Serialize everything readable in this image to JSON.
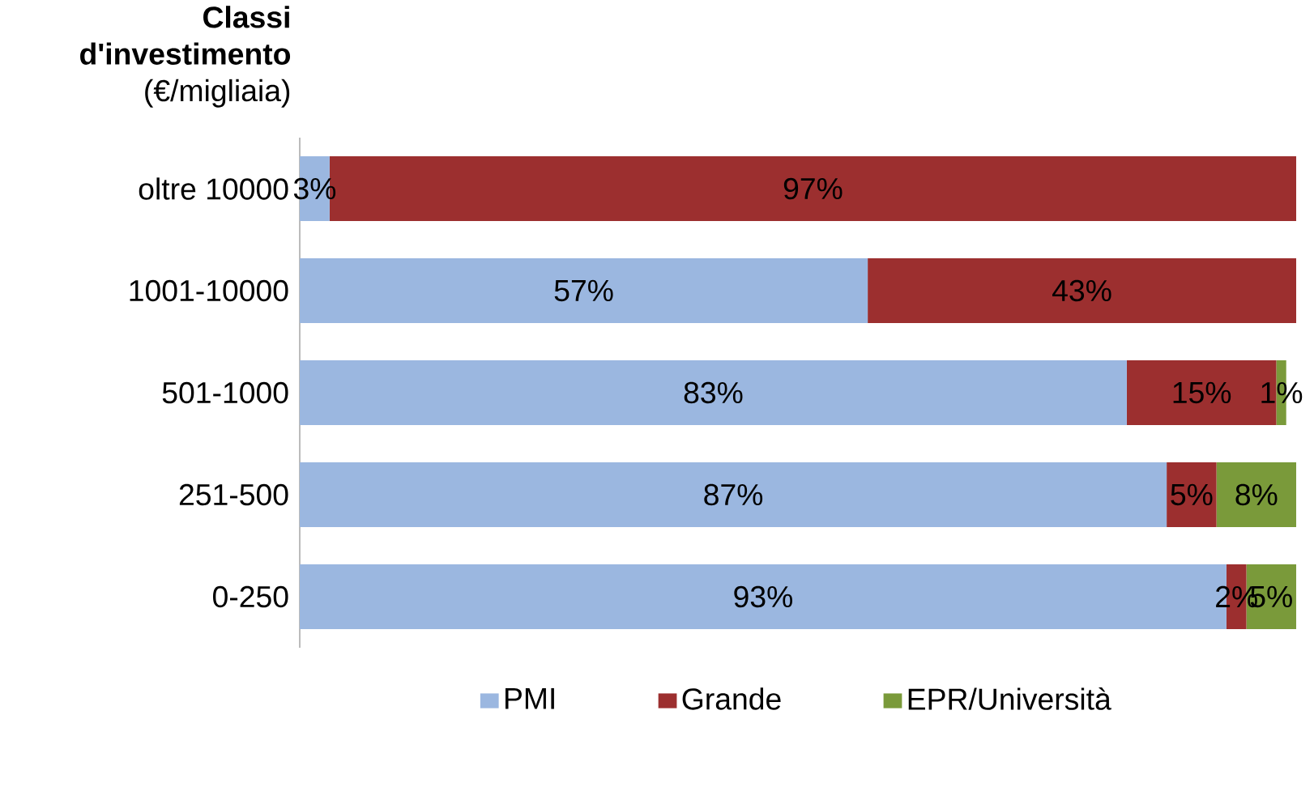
{
  "chart_data": {
    "type": "bar",
    "orientation": "horizontal",
    "stacked": true,
    "ylabel": "**Classi d'investimento** (€/migliaia)",
    "categories": [
      "oltre 10000",
      "1001-10000",
      "501-1000",
      "251-500",
      "0-250"
    ],
    "xlim": [
      0,
      100
    ],
    "series": [
      {
        "name": "PMI",
        "color": "#9bb7e0",
        "values": [
          3,
          57,
          83,
          87,
          93
        ],
        "value_labels": [
          "3%",
          "57%",
          "83%",
          "87%",
          "93%"
        ]
      },
      {
        "name": "Grande",
        "color": "#9c2f2f",
        "values": [
          97,
          43,
          15,
          5,
          2
        ],
        "value_labels": [
          "97%",
          "43%",
          "15%",
          "5%",
          "2%"
        ]
      },
      {
        "name": "EPR/Università",
        "color": "#7a9a3a",
        "values": [
          null,
          null,
          1,
          8,
          5
        ],
        "value_labels": [
          null,
          null,
          "1%",
          "8%",
          "5%"
        ]
      }
    ],
    "legend": "bottom"
  }
}
